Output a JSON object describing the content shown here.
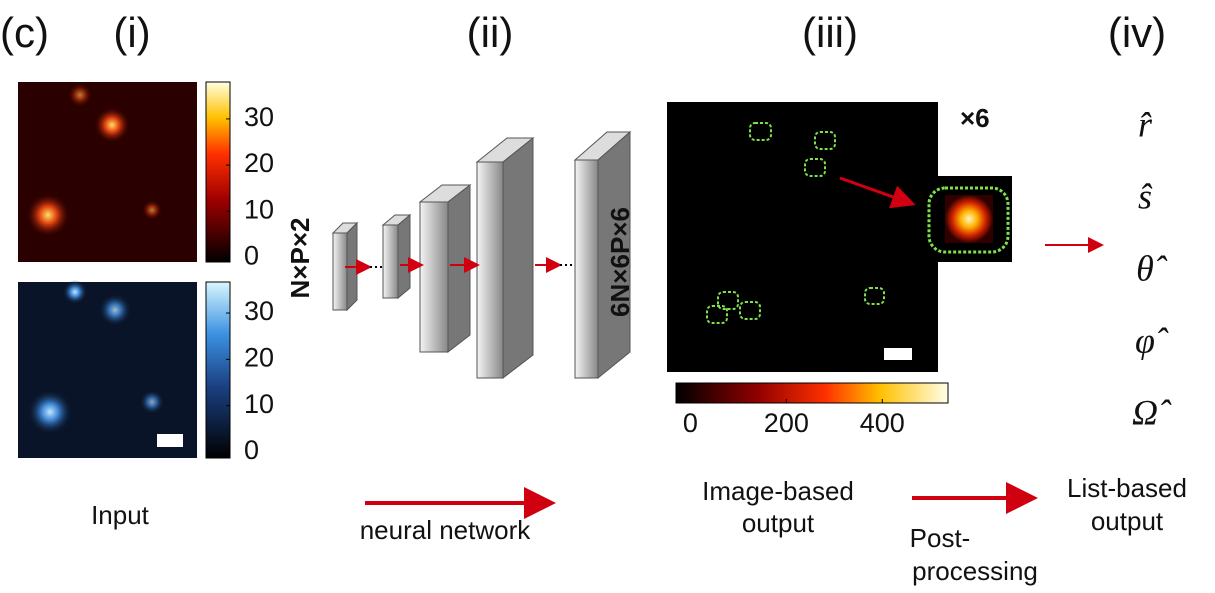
{
  "panel_label": "(c)",
  "sections": [
    {
      "label": "(i)",
      "caption": [
        "Input"
      ]
    },
    {
      "label": "(ii)",
      "caption": [
        "neural network"
      ]
    },
    {
      "label": "(iii)",
      "caption": [
        "Image-based",
        "output"
      ]
    },
    {
      "label": "(iv)",
      "caption": [
        "List-based",
        "output"
      ]
    }
  ],
  "post_processing": [
    "Post-",
    "processing"
  ],
  "input_colorbars": [
    {
      "lim": [
        -1,
        38
      ],
      "ticks": [
        0,
        10,
        20,
        30
      ]
    },
    {
      "lim": [
        -1.3,
        36.7
      ],
      "ticks": [
        0,
        10,
        20,
        30
      ]
    }
  ],
  "output_colorbar": {
    "lim": [
      -30,
      537
    ],
    "ticks": [
      0,
      200,
      400
    ]
  },
  "input_size": "N×P×2",
  "output_size": "6N×6P×6",
  "channels": "×6",
  "estimates": [
    "r̂",
    "ŝ",
    "θ̂",
    "φ̂",
    "Ω̂"
  ]
}
